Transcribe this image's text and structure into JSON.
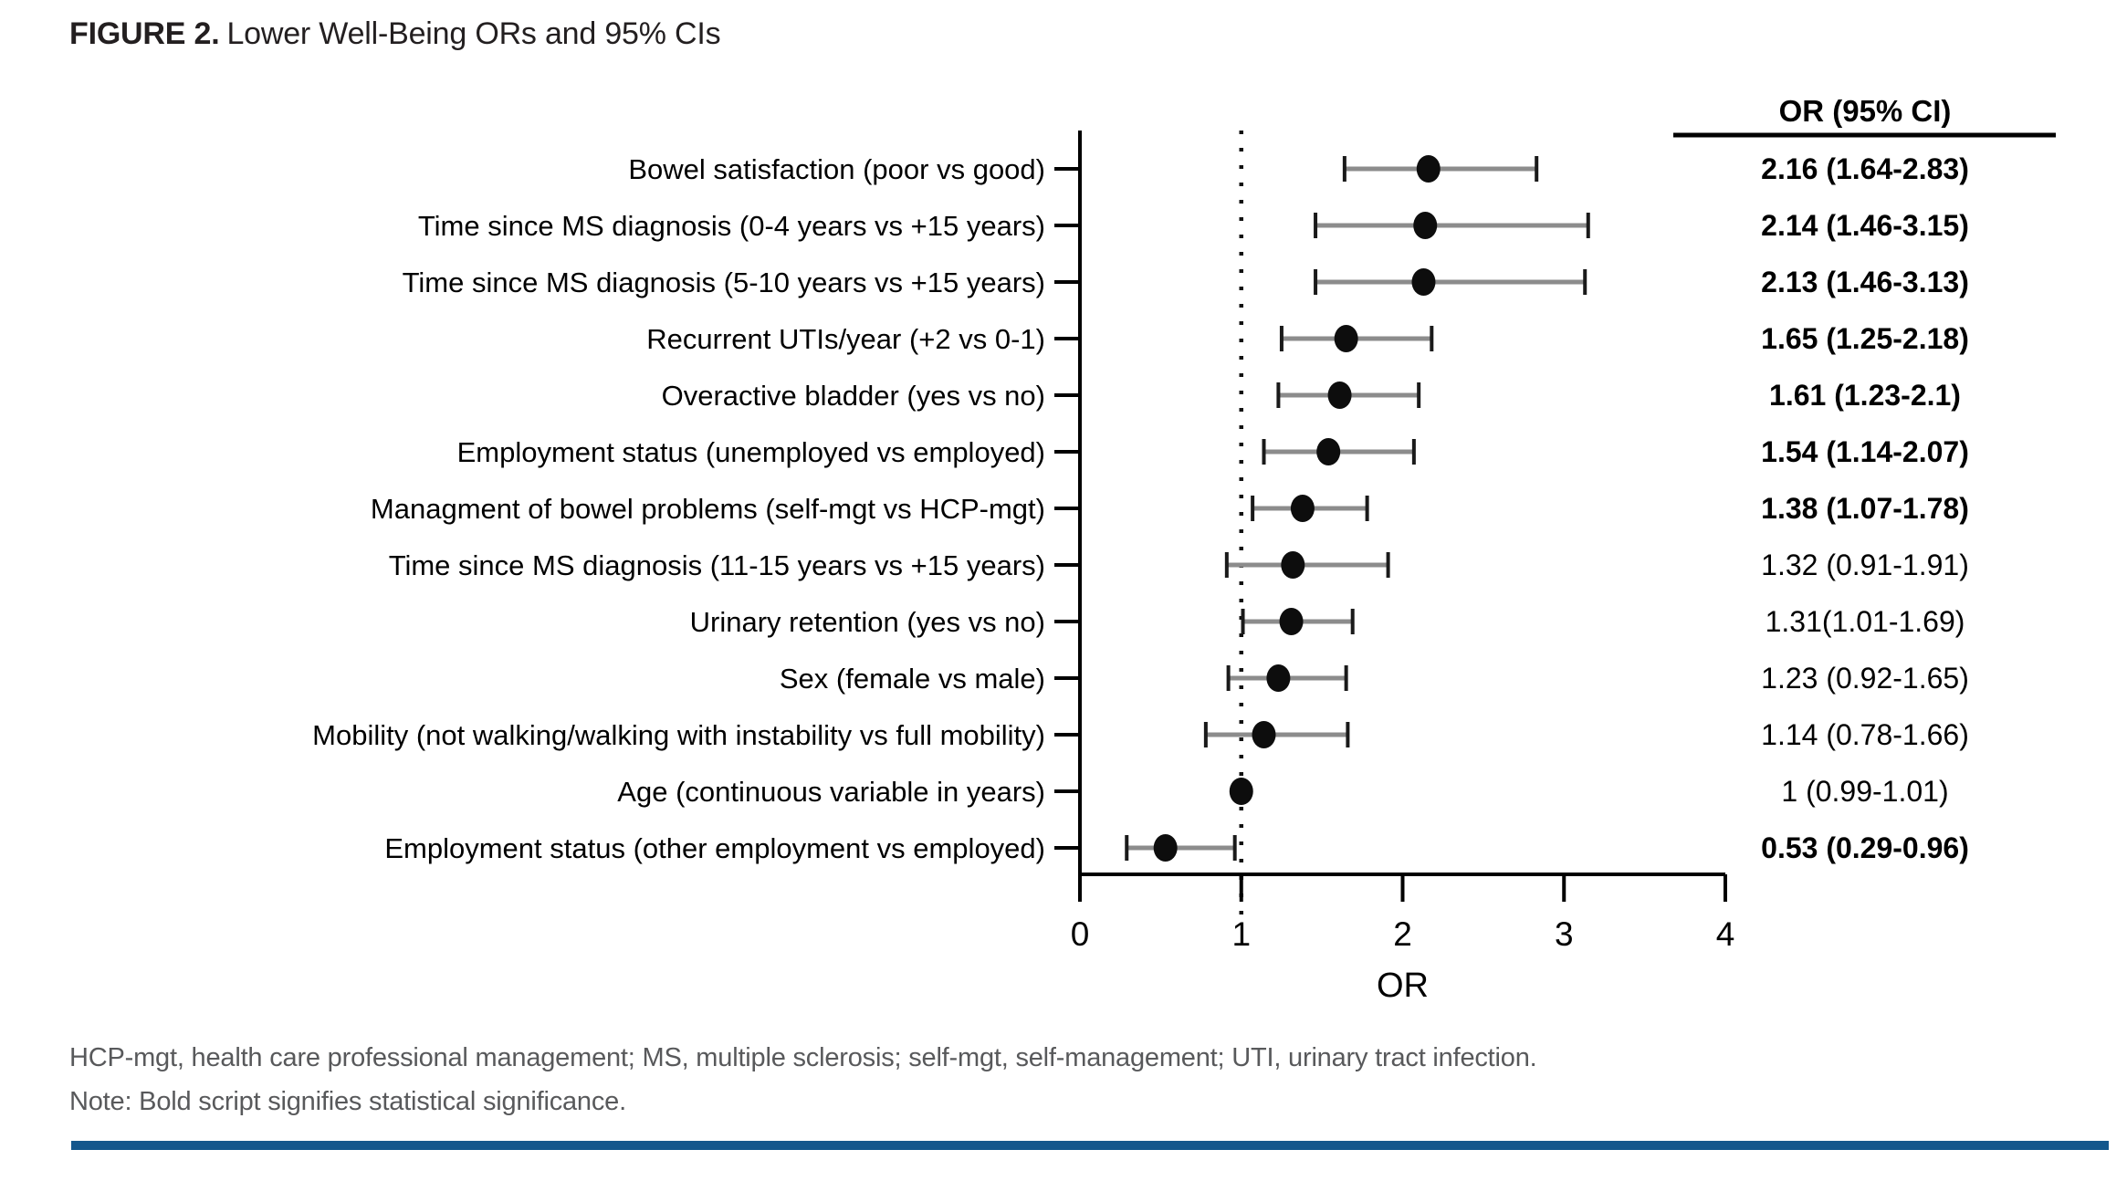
{
  "figure": {
    "title_prefix": "FIGURE 2.",
    "title_rest": "Lower Well-Being ORs and 95% CIs"
  },
  "footnotes": {
    "abbreviations": "HCP-mgt, health care professional management; MS, multiple sclerosis; self-mgt, self-management; UTI, urinary tract infection.",
    "note": "Note: Bold script signifies statistical significance."
  },
  "colors": {
    "accent_bar": "#14578c",
    "footnote_text": "#58595b",
    "axis": "#000000",
    "ci_line": "#8c8c8c",
    "ci_cap": "#1a1a1a",
    "marker": "#0d0d0d"
  },
  "chart_data": {
    "type": "scatter",
    "variant": "forest-plot",
    "title": "Lower Well-Being ORs and 95% CIs",
    "xlabel": "OR",
    "xlim": [
      0,
      4
    ],
    "x_ticks": [
      0,
      1,
      2,
      3,
      4
    ],
    "reference_line_x": 1,
    "grid": false,
    "column_header": "OR (95% CI)",
    "rows": [
      {
        "label": "Bowel satisfaction (poor vs good)",
        "or": 2.16,
        "ci_low": 1.64,
        "ci_high": 2.83,
        "display": "2.16 (1.64-2.83)",
        "bold": true
      },
      {
        "label": "Time since MS diagnosis (0-4 years vs +15 years)",
        "or": 2.14,
        "ci_low": 1.46,
        "ci_high": 3.15,
        "display": "2.14 (1.46-3.15)",
        "bold": true
      },
      {
        "label": "Time since MS diagnosis (5-10 years vs +15 years)",
        "or": 2.13,
        "ci_low": 1.46,
        "ci_high": 3.13,
        "display": "2.13 (1.46-3.13)",
        "bold": true
      },
      {
        "label": "Recurrent UTIs/year (+2 vs 0-1)",
        "or": 1.65,
        "ci_low": 1.25,
        "ci_high": 2.18,
        "display": "1.65 (1.25-2.18)",
        "bold": true
      },
      {
        "label": "Overactive bladder (yes vs no)",
        "or": 1.61,
        "ci_low": 1.23,
        "ci_high": 2.1,
        "display": "1.61 (1.23-2.1)",
        "bold": true
      },
      {
        "label": "Employment status (unemployed vs employed)",
        "or": 1.54,
        "ci_low": 1.14,
        "ci_high": 2.07,
        "display": "1.54 (1.14-2.07)",
        "bold": true
      },
      {
        "label": "Managment of bowel problems (self-mgt vs HCP-mgt)",
        "or": 1.38,
        "ci_low": 1.07,
        "ci_high": 1.78,
        "display": "1.38 (1.07-1.78)",
        "bold": true
      },
      {
        "label": "Time since MS diagnosis (11-15 years vs +15 years)",
        "or": 1.32,
        "ci_low": 0.91,
        "ci_high": 1.91,
        "display": "1.32 (0.91-1.91)",
        "bold": false
      },
      {
        "label": "Urinary retention (yes vs no)",
        "or": 1.31,
        "ci_low": 1.01,
        "ci_high": 1.69,
        "display": "1.31(1.01-1.69)",
        "bold": false
      },
      {
        "label": "Sex (female vs male)",
        "or": 1.23,
        "ci_low": 0.92,
        "ci_high": 1.65,
        "display": "1.23 (0.92-1.65)",
        "bold": false
      },
      {
        "label": "Mobility (not walking/walking with instability vs full mobility)",
        "or": 1.14,
        "ci_low": 0.78,
        "ci_high": 1.66,
        "display": "1.14 (0.78-1.66)",
        "bold": false
      },
      {
        "label": "Age (continuous variable in years)",
        "or": 1.0,
        "ci_low": 0.99,
        "ci_high": 1.01,
        "display": "1 (0.99-1.01)",
        "bold": false
      },
      {
        "label": "Employment status (other employment  vs employed)",
        "or": 0.53,
        "ci_low": 0.29,
        "ci_high": 0.96,
        "display": "0.53 (0.29-0.96)",
        "bold": true
      }
    ]
  }
}
